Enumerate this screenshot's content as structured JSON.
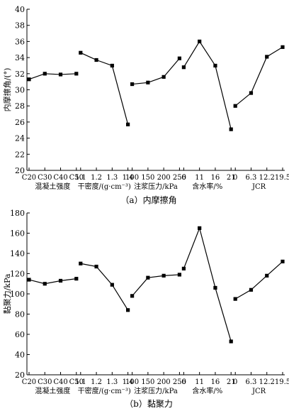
{
  "chart_data": [
    {
      "type": "line",
      "ylabel": "内摩擦角/(°)",
      "ylim": [
        20,
        40
      ],
      "yticks": [
        20,
        22,
        24,
        26,
        28,
        30,
        32,
        34,
        36,
        38,
        40
      ],
      "caption": "（a）内摩擦角",
      "groups": [
        {
          "xlabel": "混凝土强度",
          "categories": [
            "C20",
            "C30",
            "C40",
            "C50"
          ],
          "values": [
            31.3,
            32.0,
            31.9,
            32.0
          ]
        },
        {
          "xlabel": "干密度/(g·cm⁻³)",
          "categories": [
            "1.1",
            "1.2",
            "1.3",
            "1.4"
          ],
          "values": [
            34.6,
            33.7,
            33.0,
            25.7
          ]
        },
        {
          "xlabel": "注浆压力/kPa",
          "categories": [
            "100",
            "150",
            "200",
            "250"
          ],
          "values": [
            30.7,
            30.9,
            31.6,
            33.9
          ]
        },
        {
          "xlabel": "含水率/%",
          "categories": [
            "6",
            "11",
            "16",
            "21"
          ],
          "values": [
            32.8,
            36.0,
            33.0,
            25.1
          ]
        },
        {
          "xlabel": "JCR",
          "categories": [
            "0",
            "6.3",
            "12.2",
            "19.5"
          ],
          "values": [
            28.0,
            29.6,
            34.1,
            35.3
          ]
        }
      ]
    },
    {
      "type": "line",
      "ylabel": "黏聚力/kPa",
      "ylim": [
        20,
        180
      ],
      "yticks": [
        20,
        40,
        60,
        80,
        100,
        120,
        140,
        160,
        180
      ],
      "caption": "（b）黏聚力",
      "groups": [
        {
          "xlabel": "混凝土强度",
          "categories": [
            "C20",
            "C30",
            "C40",
            "C50"
          ],
          "values": [
            114,
            110,
            113,
            115
          ]
        },
        {
          "xlabel": "干密度/(g·cm⁻³)",
          "categories": [
            "1.1",
            "1.2",
            "1.3",
            "1.4"
          ],
          "values": [
            130,
            127,
            109,
            84
          ]
        },
        {
          "xlabel": "注浆压力/kPa",
          "categories": [
            "100",
            "150",
            "200",
            "250"
          ],
          "values": [
            98,
            116,
            118,
            119
          ]
        },
        {
          "xlabel": "含水率/%",
          "categories": [
            "6",
            "11",
            "16",
            "21"
          ],
          "values": [
            125,
            165,
            106,
            53
          ]
        },
        {
          "xlabel": "JCR",
          "categories": [
            "0",
            "6.3",
            "12.2",
            "19.5"
          ],
          "values": [
            95,
            104,
            118,
            132
          ]
        }
      ]
    }
  ]
}
